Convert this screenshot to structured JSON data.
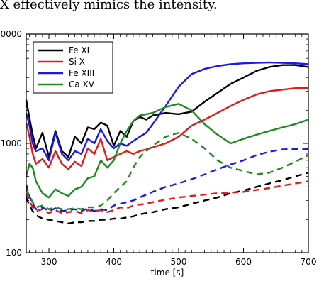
{
  "caption_fragment": "X effectively mimics the intensity.",
  "chart_data": {
    "type": "line",
    "xlabel": "time [s]",
    "ylabel": "",
    "xlim": [
      265,
      700
    ],
    "ylim": [
      100,
      10000
    ],
    "yscale": "log",
    "x_ticks": [
      300,
      400,
      500,
      600,
      700
    ],
    "y_ticks": [
      100,
      1000,
      10000
    ],
    "y_tick_labels": [
      "100",
      "1000",
      "10000"
    ],
    "legend_position": "top-left",
    "grid": false,
    "series": [
      {
        "name": "Fe XI",
        "color": "#000000",
        "style": "solid",
        "x": [
          265,
          270,
          275,
          280,
          290,
          300,
          310,
          320,
          330,
          340,
          350,
          360,
          370,
          380,
          390,
          400,
          410,
          420,
          430,
          440,
          450,
          460,
          480,
          500,
          520,
          540,
          560,
          580,
          600,
          620,
          640,
          660,
          680,
          700
        ],
        "y": [
          2500,
          1700,
          1200,
          900,
          1250,
          750,
          1300,
          850,
          750,
          1150,
          1000,
          1400,
          1350,
          1550,
          1450,
          950,
          1300,
          1150,
          1600,
          1750,
          1650,
          1800,
          1900,
          1850,
          1950,
          2400,
          2900,
          3500,
          4000,
          4600,
          5000,
          5200,
          5200,
          5000
        ]
      },
      {
        "name": "Si X",
        "color": "#e21a1a",
        "style": "solid",
        "x": [
          265,
          270,
          275,
          280,
          290,
          300,
          310,
          320,
          330,
          340,
          350,
          360,
          370,
          380,
          390,
          400,
          410,
          420,
          430,
          440,
          450,
          460,
          480,
          500,
          520,
          540,
          560,
          580,
          600,
          620,
          640,
          660,
          680,
          700
        ],
        "y": [
          1550,
          1150,
          800,
          650,
          720,
          600,
          850,
          650,
          580,
          680,
          620,
          900,
          800,
          1100,
          700,
          750,
          800,
          850,
          800,
          850,
          880,
          920,
          1000,
          1150,
          1450,
          1650,
          1900,
          2200,
          2500,
          2800,
          3000,
          3100,
          3200,
          3200
        ]
      },
      {
        "name": "Fe XIII",
        "color": "#1a1ae2",
        "style": "solid",
        "x": [
          265,
          270,
          275,
          280,
          290,
          300,
          310,
          320,
          330,
          340,
          350,
          360,
          370,
          380,
          390,
          400,
          410,
          420,
          430,
          440,
          450,
          460,
          480,
          500,
          520,
          540,
          560,
          580,
          600,
          620,
          640,
          660,
          680,
          700
        ],
        "y": [
          1900,
          1450,
          1000,
          850,
          900,
          700,
          1250,
          800,
          700,
          850,
          800,
          1100,
          1000,
          1350,
          1050,
          900,
          1000,
          950,
          1050,
          1150,
          1250,
          1500,
          2200,
          3300,
          4300,
          4800,
          5100,
          5300,
          5400,
          5450,
          5500,
          5450,
          5400,
          5300
        ]
      },
      {
        "name": "Ca XV",
        "color": "#1f8a1f",
        "style": "solid",
        "x": [
          265,
          270,
          275,
          280,
          290,
          300,
          310,
          320,
          330,
          340,
          350,
          360,
          370,
          380,
          390,
          400,
          410,
          420,
          430,
          440,
          450,
          460,
          480,
          500,
          520,
          540,
          560,
          580,
          600,
          620,
          640,
          660,
          680,
          700
        ],
        "y": [
          500,
          650,
          600,
          450,
          350,
          320,
          380,
          350,
          330,
          380,
          400,
          480,
          500,
          700,
          600,
          700,
          1000,
          1300,
          1600,
          1800,
          1850,
          1900,
          2150,
          2300,
          2000,
          1500,
          1200,
          1000,
          1100,
          1200,
          1300,
          1400,
          1500,
          1650
        ]
      },
      {
        "name": "",
        "color": "#000000",
        "style": "dashed",
        "x": [
          265,
          270,
          275,
          280,
          290,
          300,
          310,
          320,
          330,
          340,
          350,
          360,
          370,
          380,
          390,
          400,
          410,
          420,
          430,
          440,
          450,
          460,
          480,
          500,
          520,
          540,
          560,
          580,
          600,
          620,
          640,
          660,
          680,
          700
        ],
        "y": [
          320,
          270,
          240,
          220,
          205,
          200,
          195,
          190,
          185,
          190,
          190,
          195,
          195,
          200,
          200,
          205,
          205,
          210,
          215,
          225,
          230,
          235,
          250,
          260,
          280,
          300,
          320,
          350,
          370,
          400,
          430,
          460,
          500,
          540
        ]
      },
      {
        "name": "",
        "color": "#e21a1a",
        "style": "dashed",
        "x": [
          265,
          270,
          275,
          280,
          290,
          300,
          310,
          320,
          330,
          340,
          350,
          360,
          370,
          380,
          390,
          400,
          410,
          420,
          430,
          440,
          450,
          460,
          480,
          500,
          520,
          540,
          560,
          580,
          600,
          620,
          640,
          660,
          680,
          700
        ],
        "y": [
          350,
          300,
          260,
          240,
          250,
          230,
          245,
          230,
          235,
          240,
          230,
          245,
          240,
          245,
          235,
          245,
          260,
          255,
          270,
          275,
          280,
          290,
          305,
          320,
          330,
          340,
          350,
          355,
          360,
          375,
          390,
          410,
          430,
          450
        ]
      },
      {
        "name": "",
        "color": "#1a1ae2",
        "style": "dashed",
        "x": [
          265,
          270,
          275,
          280,
          290,
          300,
          310,
          320,
          330,
          340,
          350,
          360,
          370,
          380,
          390,
          400,
          410,
          420,
          430,
          440,
          450,
          460,
          480,
          500,
          520,
          540,
          560,
          580,
          600,
          620,
          640,
          660,
          680,
          700
        ],
        "y": [
          420,
          330,
          280,
          250,
          260,
          240,
          255,
          240,
          245,
          250,
          240,
          255,
          240,
          250,
          245,
          270,
          280,
          290,
          300,
          320,
          340,
          360,
          400,
          430,
          470,
          520,
          580,
          640,
          700,
          780,
          840,
          880,
          890,
          880
        ]
      },
      {
        "name": "",
        "color": "#1f8a1f",
        "style": "dashed",
        "x": [
          265,
          270,
          275,
          280,
          290,
          300,
          310,
          320,
          330,
          340,
          350,
          360,
          370,
          380,
          390,
          400,
          410,
          420,
          430,
          440,
          450,
          460,
          480,
          500,
          520,
          540,
          560,
          580,
          600,
          620,
          640,
          660,
          680,
          700
        ],
        "y": [
          380,
          330,
          290,
          260,
          270,
          250,
          260,
          250,
          250,
          255,
          250,
          260,
          260,
          270,
          300,
          350,
          400,
          450,
          600,
          750,
          850,
          950,
          1150,
          1250,
          1100,
          900,
          700,
          600,
          560,
          520,
          540,
          600,
          680,
          780
        ]
      }
    ]
  }
}
